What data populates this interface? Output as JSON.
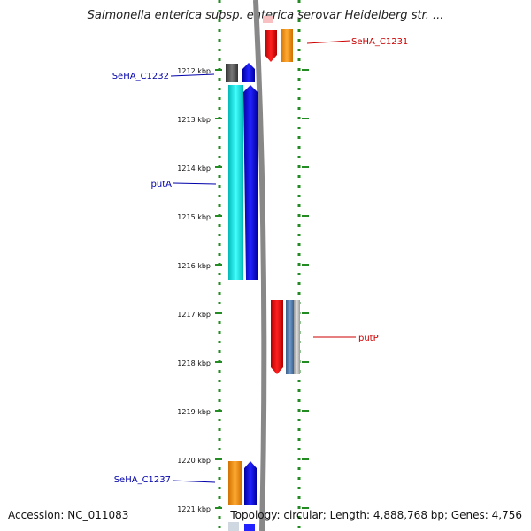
{
  "title": "Salmonella enterica subsp. enterica serovar Heidelberg str. ...",
  "accession_text": "Accession: NC_011083",
  "summary_text": "Topology: circular; Length: 4,888,768 bp; Genes: 4,756",
  "colors": {
    "forward_label": "#cc0000",
    "reverse_label": "#0000aa",
    "backbone": "#888888",
    "tick": "#228b22"
  },
  "ticks": [
    {
      "label": "1212 kbp",
      "kbp": 1212
    },
    {
      "label": "1213 kbp",
      "kbp": 1213
    },
    {
      "label": "1214 kbp",
      "kbp": 1214
    },
    {
      "label": "1215 kbp",
      "kbp": 1215
    },
    {
      "label": "1216 kbp",
      "kbp": 1216
    },
    {
      "label": "1217 kbp",
      "kbp": 1217
    },
    {
      "label": "1218 kbp",
      "kbp": 1218
    },
    {
      "label": "1219 kbp",
      "kbp": 1219
    },
    {
      "label": "1220 kbp",
      "kbp": 1220
    },
    {
      "label": "1221 kbp",
      "kbp": 1221
    }
  ],
  "genes": [
    {
      "label": "SeHA_C1231",
      "strand": "forward",
      "color": "#ee1111"
    },
    {
      "label": "SeHA_C1232",
      "strand": "reverse",
      "color": "#555555"
    },
    {
      "label": "putA",
      "strand": "reverse",
      "color": "#22dddd"
    },
    {
      "label": "putP",
      "strand": "forward",
      "color": "#ee1111"
    },
    {
      "label": "SeHA_C1237",
      "strand": "reverse",
      "color": "#ff9922"
    }
  ]
}
